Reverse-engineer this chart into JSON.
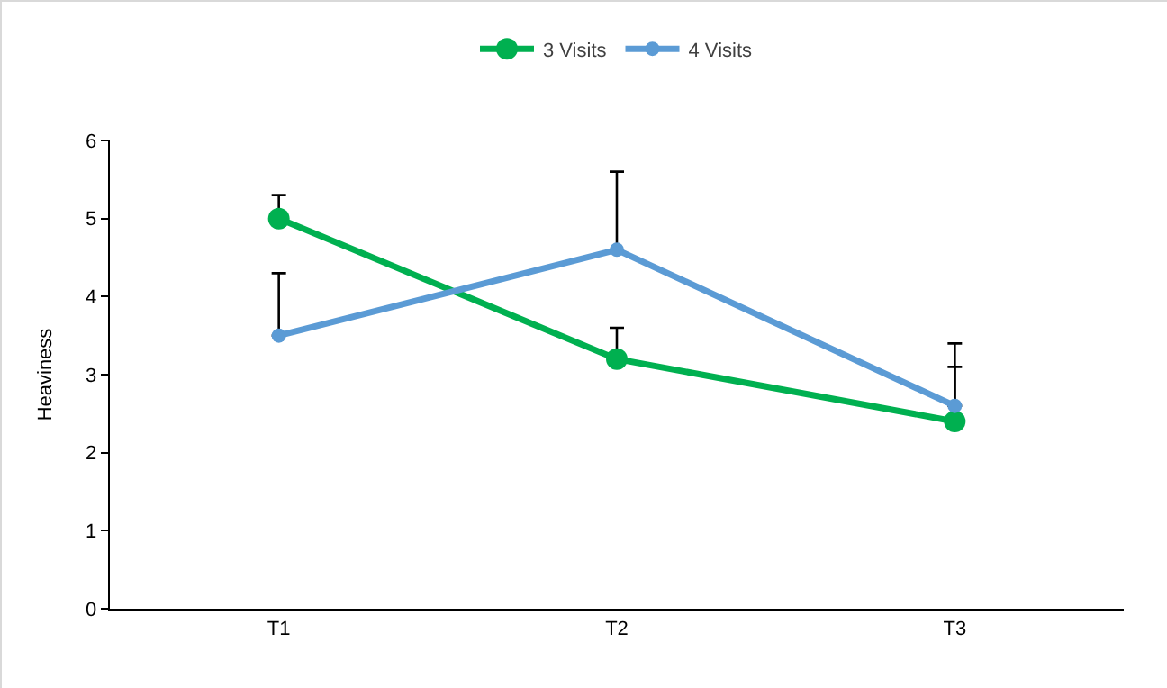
{
  "chart_data": {
    "type": "line",
    "ylabel": "Heaviness",
    "categories": [
      "T1",
      "T2",
      "T3"
    ],
    "series": [
      {
        "name": "3 Visits",
        "color": "#00b050",
        "values": [
          5.0,
          3.2,
          2.4
        ],
        "errors": [
          [
            5.0,
            5.3
          ],
          [
            3.2,
            3.6
          ],
          [
            2.4,
            3.1
          ]
        ]
      },
      {
        "name": "4 Visits",
        "color": "#5b9bd5",
        "values": [
          3.5,
          4.6,
          2.6
        ],
        "errors": [
          [
            3.5,
            4.3
          ],
          [
            4.6,
            5.6
          ],
          [
            2.6,
            3.4
          ]
        ]
      }
    ],
    "ylim": [
      0,
      6
    ],
    "yticks": [
      0,
      1,
      2,
      3,
      4,
      5,
      6
    ],
    "grid": false,
    "legend": "top",
    "marker": "circle",
    "line_style": "solid"
  }
}
